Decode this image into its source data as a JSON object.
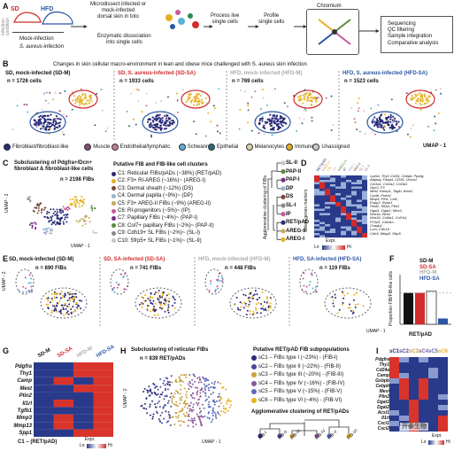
{
  "panel_a": {
    "letter": "A",
    "sd": "SD",
    "hfd": "HFD",
    "infection_condition": "Infection\ncondition",
    "mock": "Mock-infection",
    "sa": "S. aureus-infection",
    "step1": "Microdissect infected or\nmock-infected\ndorsal skin in toto",
    "step2": "Enzymatic dissociation\ninto single cells",
    "step3": "Process live\nsingle cells",
    "step4": "Profile\nsingle cells",
    "chromium": "Chromium",
    "step5": "Sequencing\nQC filtering\nSample integration\nComparative analysis"
  },
  "panel_b": {
    "letter": "B",
    "title": "Changes in skin cellular macro-environment in lean and obese mice challenged with S. aureus skin infection",
    "panels": [
      {
        "label": "SD, mock-infected (SD-M)",
        "count": "n = 1726 cells",
        "color": "#111111"
      },
      {
        "label": "SD, S. aureus-infected (SD-SA)",
        "count": "n = 1933 cells",
        "color": "#d12b2b"
      },
      {
        "label": "HFD, mock-infected (HFD-M)",
        "count": "n = 769 cells",
        "color": "#aaaaaa"
      },
      {
        "label": "HFD, S. aureus-infected (HFD-SA)",
        "count": "n = 1523 cells",
        "color": "#2a55a4"
      }
    ],
    "legend": [
      {
        "label": "Fibroblast/fibroblast-like",
        "color": "#2a2a7a"
      },
      {
        "label": "Muscle",
        "color": "#8a4a7a"
      },
      {
        "label": "Endothelial/lymphatic",
        "color": "#c27a9a"
      },
      {
        "label": "Schwann",
        "color": "#5ab0d8"
      },
      {
        "label": "Epithelial",
        "color": "#2a6a7a"
      },
      {
        "label": "Melanocytes",
        "color": "#d8d0b0"
      },
      {
        "label": "Immune",
        "color": "#e8b020"
      },
      {
        "label": "Unassigned",
        "color": "#cccccc"
      }
    ],
    "umap": "UMAP - 1"
  },
  "panel_c": {
    "letter": "C",
    "title": "Subclustering of Pdgfra+/Dcn+\nfibroblast & fibroblast-like cells",
    "count": "n = 2198 FIBs",
    "umap1": "UMAP - 1",
    "umap2": "UMAP - 2",
    "clusters_title": "Putative FIB and FIB-like cell clusters",
    "clusters": [
      {
        "label": "C1: Reticular FIBs/pADs (~38%) (RET/pAD)",
        "color": "#2a2a7a"
      },
      {
        "label": "C2: F3+ RI-AREG (~16%)~ (AREG-I)",
        "color": "#e8b020"
      },
      {
        "label": "C3: Dermal sheath (~12%) (DS)",
        "color": "#7a4a3a"
      },
      {
        "label": "C4: Dermal papilla (~9%)~ (DP)",
        "color": "#9ab0d0"
      },
      {
        "label": "C5: F3+ AREG-II FIBs (~9%) (AREG-II)",
        "color": "#c8a860"
      },
      {
        "label": "C6: RI-progenitors (~5%)~ (IP)",
        "color": "#c85a9a"
      },
      {
        "label": "C7: Papillary FIBs (~4%)~ (PAP-I)",
        "color": "#7a2a8a"
      },
      {
        "label": "C8: Col7+ papillary FIBs (~2%)~ (PAP-II)",
        "color": "#5a8a3a"
      },
      {
        "label": "C9: Cdh19+ SL FIBs (~2%)~ (SL-I)",
        "color": "#8a8a8a"
      },
      {
        "label": "C10: Sfrp5+ SL FIBs (~1%)~ (SL-II)",
        "color": "#c8c8c8"
      }
    ],
    "agglom": "Agglomerative clustering of FIBs",
    "tree": [
      "SL-II",
      "PAP-II",
      "PAP-I",
      "DP",
      "DS",
      "SL-I",
      "IP",
      "RET/pAD",
      "AREG-II",
      "AREG-I"
    ],
    "tree_colors": [
      "#c8c8c8",
      "#5a8a3a",
      "#7a2a8a",
      "#9ab0d0",
      "#7a4a3a",
      "#8a8a8a",
      "#c85a9a",
      "#2a2a7a",
      "#c8a860",
      "#e8b020"
    ]
  },
  "panel_d": {
    "letter": "D",
    "col_labels": [
      "RET/pAD",
      "AREG-I",
      "DS",
      "DP",
      "AREG-II",
      "IP",
      "PAP-I",
      "PAP-II",
      "SL-I",
      "SL-II"
    ],
    "genes": [
      "Lyz6a, Thy1 Col34, Cebpb, Pparg,",
      "Adipoq, Fabp4, CD36, Ucsm1",
      "Col1a1, Col1a2, Col3a1",
      "Gpx3, F3",
      "Mest, Ramp1, Tagln, Acta2,",
      "Cysltr, Prdm1",
      "Bmp4, Pfn1, Lef1,",
      "Enpp2, Ryan1",
      "Ptsd2, Sfrp4, Fbn1",
      "Dgat1, Dgat2, Mmr2,",
      "Wnt1b, Wnt1",
      "Wnt16, Col6a1, Col7a1,",
      "P13d1, Cdh9m",
      "Cxadp1",
      "Lum, Cdh19",
      "Cdh5, Mfap5, Sfrp5"
    ],
    "ylabel": "Select genes markers",
    "expr": "Expr.",
    "lo": "Lo",
    "hi": "Hi"
  },
  "panel_e": {
    "letter": "E",
    "panels": [
      {
        "label": "SD, mock-infected (SD-M)",
        "count": "n = 890 FIBs",
        "color": "#111111"
      },
      {
        "label": "SD, SA-infected (SD-SA)",
        "count": "n = 741 FIBs",
        "color": "#d12b2b"
      },
      {
        "label": "HFD, mock-infected (HFD-M)",
        "count": "n = 448 FIBs",
        "color": "#aaaaaa"
      },
      {
        "label": "HFD, SA-infected (HFD-SA)",
        "count": "n = 119 FIBs",
        "color": "#2a55a4"
      }
    ],
    "umap1": "UMAP - 1",
    "umap2": "UMAP - 2"
  },
  "panel_f": {
    "letter": "F",
    "ylabel": "Proportion FIB/FIB-like cells",
    "xlabel": "RET/pAD",
    "legend": [
      {
        "label": "SD-M",
        "color": "#111111"
      },
      {
        "label": "SD-SA",
        "color": "#d12b2b"
      },
      {
        "label": "HFD-M",
        "color": "#aaaaaa"
      },
      {
        "label": "HFD-SA",
        "color": "#2a55a4"
      }
    ],
    "chart_data": {
      "type": "bar",
      "categories": [
        "RET/pAD"
      ],
      "series": [
        {
          "name": "SD-M",
          "values": [
            0.38
          ]
        },
        {
          "name": "SD-SA",
          "values": [
            0.38
          ]
        },
        {
          "name": "HFD-M",
          "values": [
            0.4
          ]
        },
        {
          "name": "HFD-SA",
          "values": [
            0.07
          ]
        }
      ],
      "ylim": [
        0,
        0.6
      ]
    }
  },
  "panel_g": {
    "letter": "G",
    "cols": [
      "SD-M",
      "SD-SA",
      "HFD-M",
      "HFD-SA"
    ],
    "col_colors": [
      "#111111",
      "#d12b2b",
      "#aaaaaa",
      "#2a55a4"
    ],
    "genes": [
      "Pdgfra",
      "Thy1",
      "Camp",
      "Mest",
      "Plin2",
      "Il1rl",
      "Tgfb1",
      "Mmp3",
      "Mmp13",
      "Spp1"
    ],
    "xlabel": "C1 – (RET/pAD)",
    "expr": "Expr.",
    "lo": "Lo",
    "hi": "Hi"
  },
  "panel_h": {
    "letter": "H",
    "title": "Subclustering of reticular FIBs",
    "count": "n = 839 RET/pADs",
    "umap1": "UMAP - 1",
    "umap2": "UMAP - 2",
    "subpop_title": "Putative RET/pAD FIB subpopulations",
    "subpops": [
      {
        "label": "sC1 – FIBs type I (~23%) - (FIB-I)",
        "color": "#2a2a7a"
      },
      {
        "label": "sC2 – FIBs type II (~22%) - (FIB-II)",
        "color": "#4a4a9a"
      },
      {
        "label": "sC3 – FIBs type III (~20%) - (FIB-III)",
        "color": "#c8a040"
      },
      {
        "label": "sC4 – FIBs type IV (~16%) - (FIB-IV)",
        "color": "#8a5a9a"
      },
      {
        "label": "sC5 – FIBs type V (~15%) - (FIB-V)",
        "color": "#5a6aba"
      },
      {
        "label": "sC6 – FIBs type VI (~4%) - (FIB-VI)",
        "color": "#e8b020"
      }
    ],
    "agglom": "Agglomerative clustering of RET/pADs",
    "leaves": [
      "FIB-I",
      "FIB-II",
      "FIB-III",
      "FIB-IV",
      "FIB-V",
      "FIB-VI"
    ]
  },
  "panel_i": {
    "letter": "I",
    "cols": [
      "sC1",
      "sC2",
      "sC3",
      "sC4",
      "sC5",
      "sC6"
    ],
    "col_colors": [
      "#2a2a7a",
      "#4a4a9a",
      "#c8a040",
      "#8a5a9a",
      "#5a6aba",
      "#e8b020"
    ],
    "genes": [
      "Pdgfra",
      "Thy1",
      "Cd24a",
      "Camp",
      "Gsbpb",
      "Cebpb",
      "Mest",
      "Plin2",
      "Dgat1",
      "Dgat2",
      "Acsl1",
      "Il1rl",
      "Cxcl1",
      "Cxcl2"
    ],
    "expr": "Expr.",
    "lo": "Lo",
    "hi": "Hi",
    "watermark": "开泰生物"
  }
}
